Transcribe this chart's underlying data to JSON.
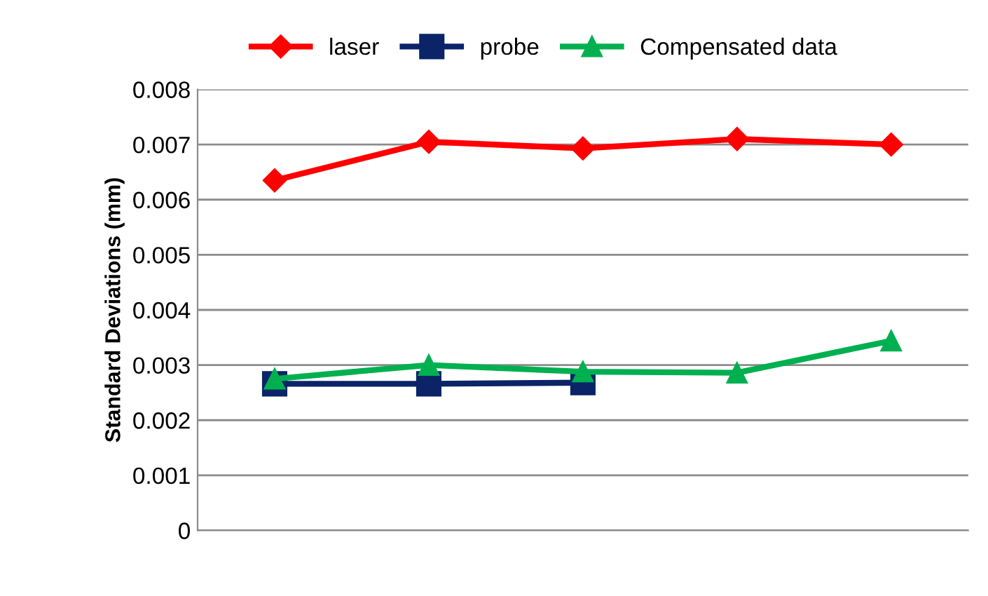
{
  "chart_data": {
    "type": "line",
    "ylabel": "Standard Deviations (mm)",
    "categories": [
      null,
      null,
      null,
      null,
      null
    ],
    "series": [
      {
        "name": "laser",
        "color": "#ff0000",
        "marker": "diamond",
        "values": [
          0.00635,
          0.00705,
          0.00693,
          0.0071,
          0.007
        ]
      },
      {
        "name": "probe",
        "color": "#0b2468",
        "marker": "square",
        "values": [
          0.00266,
          0.00266,
          0.00268,
          null,
          null
        ]
      },
      {
        "name": "Compensated data",
        "color": "#00b050",
        "marker": "triangle",
        "values": [
          0.00275,
          0.003,
          0.00288,
          0.00286,
          0.00344
        ]
      }
    ],
    "ylim": [
      0,
      0.008
    ],
    "yticks": [
      0,
      0.001,
      0.002,
      0.003,
      0.004,
      0.005,
      0.006,
      0.007,
      0.008
    ],
    "grid": "y",
    "legend": "top",
    "line_style": "solid"
  }
}
